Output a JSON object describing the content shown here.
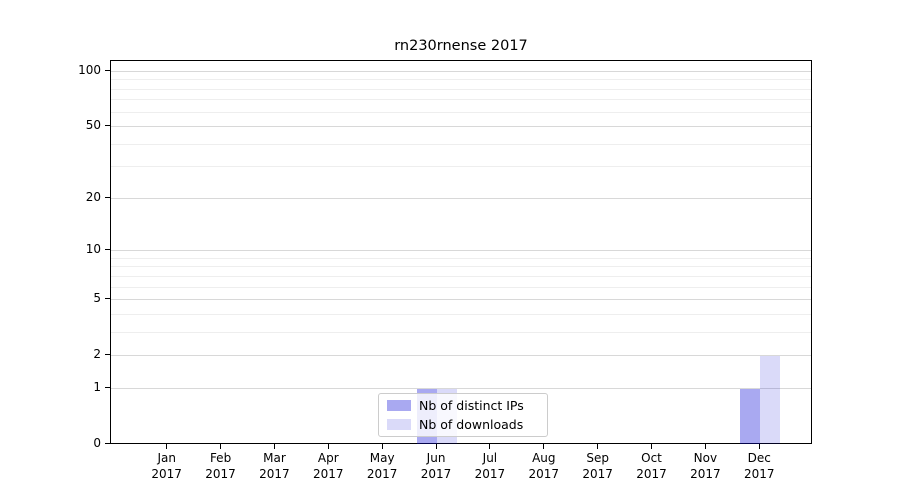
{
  "chart_data": {
    "type": "bar",
    "title": "rn230rnense 2017",
    "categories": [
      "Jan",
      "Feb",
      "Mar",
      "Apr",
      "May",
      "Jun",
      "Jul",
      "Aug",
      "Sep",
      "Oct",
      "Nov",
      "Dec"
    ],
    "x_tick_second_line": "2017",
    "series": [
      {
        "name": "Nb of distinct IPs",
        "color": "rgba(10,10,215,0.35)",
        "values": [
          0,
          0,
          0,
          0,
          0,
          1,
          0,
          0,
          0,
          0,
          0,
          1
        ]
      },
      {
        "name": "Nb of downloads",
        "color": "rgba(10,10,215,0.15)",
        "values": [
          0,
          0,
          0,
          0,
          0,
          1,
          0,
          0,
          0,
          0,
          0,
          2
        ]
      }
    ],
    "y_axis": {
      "scale": "log10(1+v)",
      "major_ticks": [
        0,
        1,
        2,
        5,
        10,
        20,
        50,
        100
      ],
      "minor_ticks": [
        3,
        4,
        6,
        7,
        8,
        9,
        30,
        40,
        60,
        70,
        80,
        90
      ],
      "ylim": [
        0,
        113
      ]
    },
    "xlabel": "",
    "ylabel": "",
    "legend": {
      "position": "lower center",
      "entries": [
        "Nb of distinct IPs",
        "Nb of downloads"
      ]
    },
    "grid": "horizontal-major-and-minor"
  }
}
